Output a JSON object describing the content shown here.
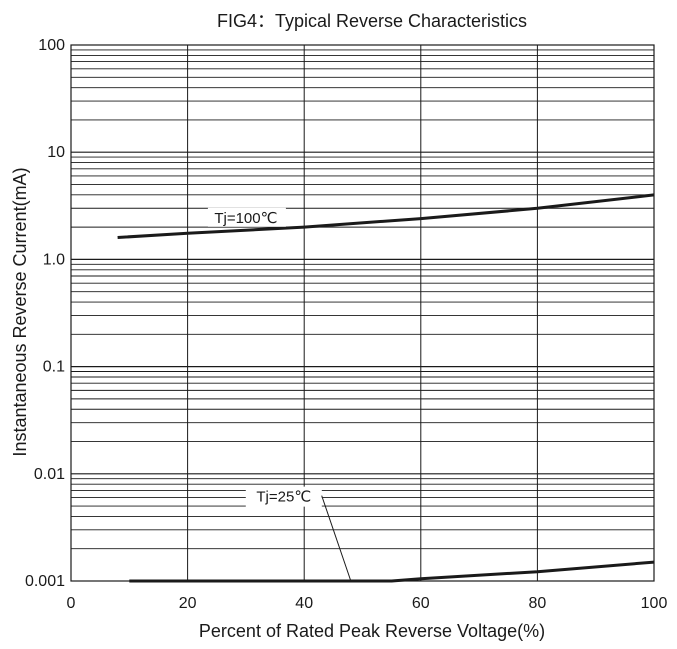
{
  "chart_data": {
    "type": "line",
    "title": "FIG4：Typical Reverse Characteristics",
    "xlabel": "Percent of Rated Peak Reverse Voltage(%)",
    "ylabel": "Instantaneous Reverse Current(mA)",
    "xlim": [
      0,
      100
    ],
    "ylim": [
      0.001,
      100
    ],
    "yscale": "log",
    "grid": true,
    "x_ticks": [
      0,
      20,
      40,
      60,
      80,
      100
    ],
    "x_tick_labels": [
      "0",
      "20",
      "40",
      "60",
      "80",
      "100"
    ],
    "y_ticks": [
      0.001,
      0.01,
      0.1,
      1,
      10,
      100
    ],
    "y_tick_labels": [
      "0.001",
      "0.01",
      "0.1",
      "1.0",
      "10",
      "100"
    ],
    "colors": {
      "line": "#1a1a1a",
      "grid": "#1a1a1a"
    },
    "series": [
      {
        "name": "Tj=100℃",
        "x": [
          8,
          20,
          40,
          60,
          80,
          100
        ],
        "y": [
          1.6,
          1.75,
          2.0,
          2.4,
          3.0,
          4.0
        ]
      },
      {
        "name": "Tj=25℃",
        "x": [
          10,
          20,
          40,
          55,
          60,
          80,
          100
        ],
        "y": [
          0.001,
          0.001,
          0.001,
          0.001,
          0.00105,
          0.00122,
          0.0015
        ]
      }
    ],
    "annotations": [
      {
        "text": "Tj=100℃",
        "series": 0
      },
      {
        "text": "Tj=25℃",
        "series": 1
      }
    ]
  }
}
